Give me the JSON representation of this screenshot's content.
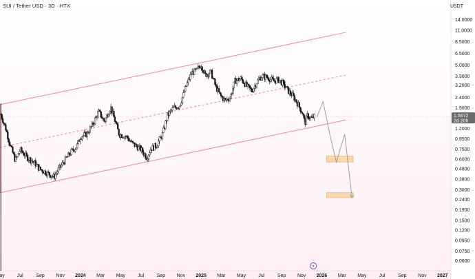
{
  "header": {
    "title": "SUI / Tether USD · 3D · HTX",
    "quote": "USDT"
  },
  "badges": {
    "price": "1.5672",
    "countdown": "2d 20h"
  },
  "colors": {
    "channel": "#f2859a",
    "candle": "#1b1b1b",
    "target_zone": "#f9d6a6",
    "target_border": "#f0a44c",
    "projection": "#9e9e9e",
    "background_tint": "#fff0f5",
    "badge_bg": "#6b6b6b",
    "event_icon": "#9c27b0"
  },
  "icons": {
    "event": "lightning-icon"
  },
  "chart_data": {
    "type": "candlestick",
    "ylog": true,
    "ylim": [
      0.048,
      17
    ],
    "y_ticks": [
      "14.0000",
      "11.0000",
      "8.5000",
      "6.5000",
      "5.0000",
      "3.9000",
      "3.2000",
      "2.4000",
      "1.9000",
      "1.2000",
      "0.9500",
      "0.7500",
      "0.6000",
      "0.4800",
      "0.3800",
      "0.3000",
      "0.2400",
      "0.1900",
      "0.1500",
      "0.1200",
      "0.0950",
      "0.0750",
      "0.0600"
    ],
    "x_ticks": [
      "May",
      "Jul",
      "Sep",
      "Nov",
      "2024",
      "Mar",
      "May",
      "Jul",
      "Sep",
      "Nov",
      "2025",
      "Mar",
      "May",
      "Jul",
      "Sep",
      "Nov",
      "2026",
      "Mar",
      "May",
      "Jul",
      "Sep",
      "Nov",
      "2027"
    ],
    "x_tick_years": [
      2023.333,
      2023.5,
      2023.667,
      2023.833,
      2024.0,
      2024.167,
      2024.333,
      2024.5,
      2024.667,
      2024.833,
      2025.0,
      2025.167,
      2025.333,
      2025.5,
      2025.667,
      2025.833,
      2026.0,
      2026.167,
      2026.333,
      2026.5,
      2026.667,
      2026.833,
      2027.0
    ],
    "bold_ticks": [
      "2024",
      "2025",
      "2026",
      "2027"
    ],
    "price_anchors": [
      [
        2023.34,
        1.65
      ],
      [
        2023.38,
        1.2
      ],
      [
        2023.42,
        0.8
      ],
      [
        2023.46,
        0.58
      ],
      [
        2023.5,
        0.74
      ],
      [
        2023.56,
        0.62
      ],
      [
        2023.62,
        0.55
      ],
      [
        2023.66,
        0.48
      ],
      [
        2023.72,
        0.44
      ],
      [
        2023.78,
        0.4
      ],
      [
        2023.82,
        0.48
      ],
      [
        2023.87,
        0.58
      ],
      [
        2023.92,
        0.7
      ],
      [
        2023.97,
        0.8
      ],
      [
        2024.0,
        1.0
      ],
      [
        2024.05,
        1.05
      ],
      [
        2024.1,
        1.3
      ],
      [
        2024.15,
        1.75
      ],
      [
        2024.2,
        1.4
      ],
      [
        2024.25,
        1.95
      ],
      [
        2024.28,
        1.5
      ],
      [
        2024.32,
        1.05
      ],
      [
        2024.38,
        1.0
      ],
      [
        2024.43,
        0.85
      ],
      [
        2024.5,
        0.75
      ],
      [
        2024.55,
        0.62
      ],
      [
        2024.58,
        0.75
      ],
      [
        2024.63,
        0.82
      ],
      [
        2024.68,
        1.05
      ],
      [
        2024.72,
        1.6
      ],
      [
        2024.77,
        1.9
      ],
      [
        2024.82,
        2.0
      ],
      [
        2024.88,
        3.2
      ],
      [
        2024.92,
        4.2
      ],
      [
        2024.96,
        4.4
      ],
      [
        2025.0,
        5.1
      ],
      [
        2025.03,
        4.0
      ],
      [
        2025.08,
        4.3
      ],
      [
        2025.12,
        3.1
      ],
      [
        2025.16,
        2.5
      ],
      [
        2025.2,
        2.25
      ],
      [
        2025.24,
        2.4
      ],
      [
        2025.28,
        3.5
      ],
      [
        2025.33,
        3.7
      ],
      [
        2025.38,
        3.1
      ],
      [
        2025.42,
        2.8
      ],
      [
        2025.46,
        3.4
      ],
      [
        2025.5,
        3.9
      ],
      [
        2025.55,
        3.8
      ],
      [
        2025.6,
        3.5
      ],
      [
        2025.64,
        3.6
      ],
      [
        2025.68,
        3.3
      ],
      [
        2025.72,
        2.8
      ],
      [
        2025.76,
        2.5
      ],
      [
        2025.8,
        2.1
      ],
      [
        2025.84,
        1.7
      ],
      [
        2025.86,
        1.35
      ],
      [
        2025.88,
        1.6
      ],
      [
        2025.91,
        1.5
      ],
      [
        2025.94,
        1.57
      ]
    ],
    "channel": {
      "upper": [
        [
          2023.333,
          2.05
        ],
        [
          2026.2,
          10.5
        ]
      ],
      "middle": [
        [
          2023.333,
          0.78
        ],
        [
          2026.2,
          4.0
        ]
      ],
      "lower": [
        [
          2023.333,
          0.28
        ],
        [
          2026.2,
          1.45
        ]
      ]
    },
    "projection_path": [
      [
        2025.96,
        1.55
      ],
      [
        2026.01,
        2.2
      ],
      [
        2026.07,
        1.0
      ],
      [
        2026.12,
        0.56
      ],
      [
        2026.19,
        1.05
      ],
      [
        2026.25,
        0.25
      ]
    ],
    "target_zones": [
      {
        "x0": 2026.04,
        "x1": 2026.26,
        "y0": 0.56,
        "y1": 0.64
      },
      {
        "x0": 2026.04,
        "x1": 2026.26,
        "y0": 0.25,
        "y1": 0.28
      }
    ],
    "last_price": 1.5672
  }
}
